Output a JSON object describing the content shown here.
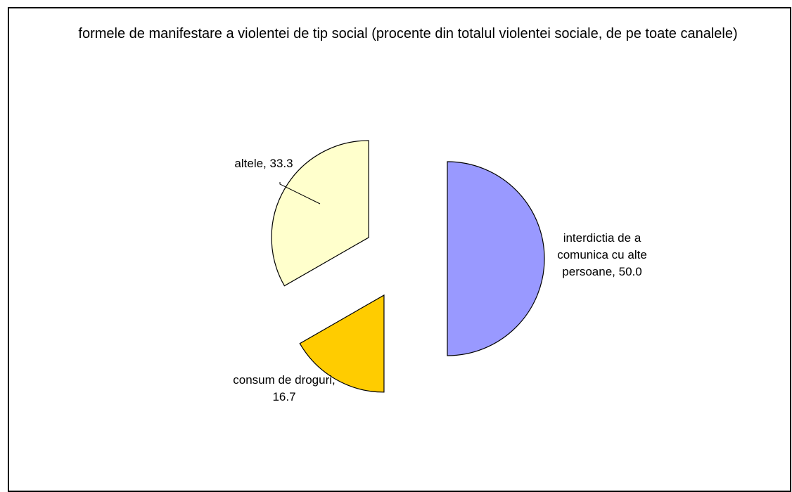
{
  "chart_data": {
    "type": "pie",
    "title": "formele de manifestare a violentei de tip social (procente din totalul violentei sociale, de pe toate canalele)",
    "slices": [
      {
        "label": "interdictia de a comunica cu alte persoane",
        "value": 50.0,
        "label_text": "interdictia de a comunica cu alte persoane, 50.0",
        "label_lines": [
          "interdictia de a",
          "comunica cu alte",
          "persoane, 50.0"
        ],
        "color": "#9999FF"
      },
      {
        "label": "consum de droguri",
        "value": 16.7,
        "label_text": "consum de droguri, 16.7",
        "label_lines": [
          "consum de droguri,",
          "16.7"
        ],
        "color": "#FFCC00"
      },
      {
        "label": "altele",
        "value": 33.3,
        "label_text": "altele, 33.3",
        "label_lines": [
          "altele, 33.3"
        ],
        "color": "#FFFFCC"
      }
    ],
    "exploded": true,
    "legend": "none",
    "data_labels": "category, value"
  }
}
